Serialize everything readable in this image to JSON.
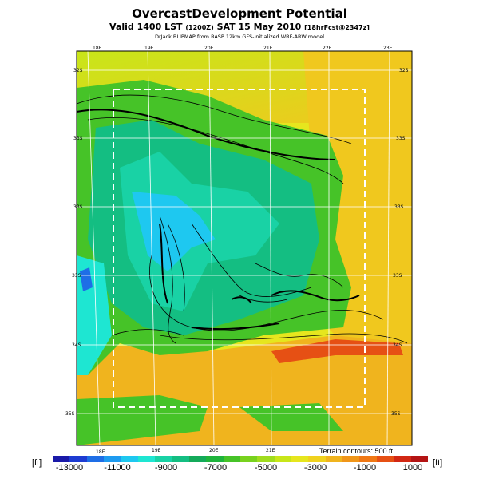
{
  "title": "OvercastDevelopment Potential",
  "subtitle_main": "Valid 1400 LST",
  "subtitle_utc": "(1200Z)",
  "subtitle_date": "SAT 15 May 2010",
  "subtitle_fcst": "[18hrFcst@2347z]",
  "credit": "DrJack BLIPMAP from RASP 12km GFS-initialized WRF-ARW model",
  "terrain_note": "Terrain contours: 500 ft",
  "units": {
    "left": "[ft]",
    "right": "[ft]"
  },
  "longitude_labels_top": [
    "18E",
    "19E",
    "20E",
    "21E",
    "22E",
    "23E"
  ],
  "longitude_labels_bottom": [
    "18E",
    "19E",
    "20E",
    "21E"
  ],
  "latitude_labels_left": [
    "32S",
    "33S",
    "33S",
    "33S",
    "34S",
    "35S"
  ],
  "latitude_labels_right": [
    "32S",
    "33S",
    "33S",
    "33S",
    "34S",
    "35S"
  ],
  "colorbar": {
    "ticks": [
      "-13000",
      "-11000",
      "-9000",
      "-7000",
      "-5000",
      "-3000",
      "-1000",
      "1000"
    ],
    "colors": [
      "#1a1aa8",
      "#1e3cd2",
      "#1e6ee6",
      "#1e9bf0",
      "#1ec8f0",
      "#1ee6d2",
      "#19d2a5",
      "#14be82",
      "#14aa5a",
      "#1eb43c",
      "#46c328",
      "#78d21e",
      "#a0dc1e",
      "#c8e619",
      "#e6e61e",
      "#f0d21e",
      "#f0b41e",
      "#f09619",
      "#f07814",
      "#e65014",
      "#d22814",
      "#b41414"
    ]
  },
  "icons": {
    "grid": "lat-lon-grid",
    "coastline": "coastline-contours"
  }
}
